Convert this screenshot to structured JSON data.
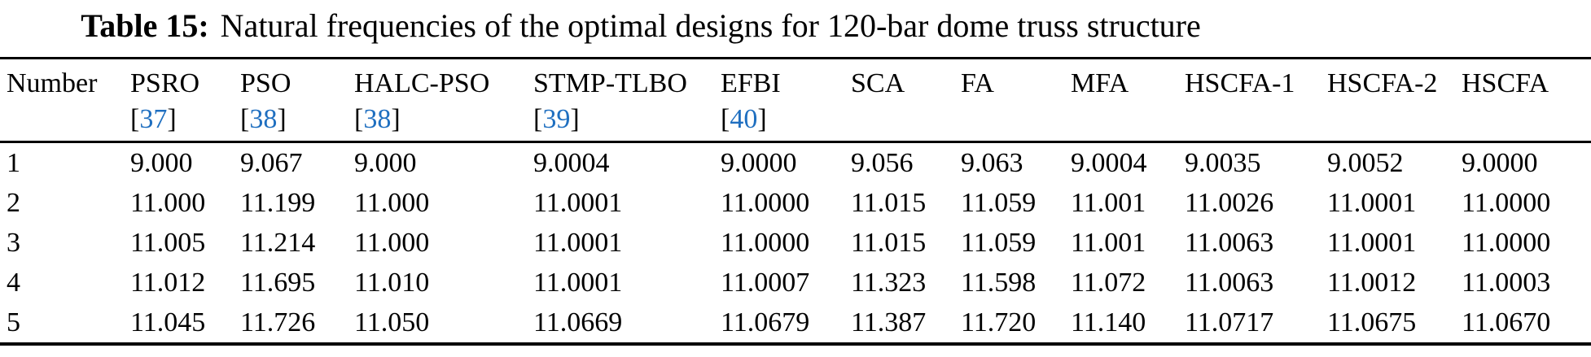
{
  "title": {
    "label": "Table 15:",
    "text": "Natural frequencies of the optimal designs for 120-bar dome truss structure"
  },
  "link_color": "#1f6fc0",
  "text_color": "#000000",
  "table": {
    "row_header": "Number",
    "columns": [
      {
        "name": "Number",
        "ref": ""
      },
      {
        "name": "PSRO",
        "ref": "37"
      },
      {
        "name": "PSO",
        "ref": "38"
      },
      {
        "name": "HALC-PSO",
        "ref": "38"
      },
      {
        "name": "STMP-TLBO",
        "ref": "39"
      },
      {
        "name": "EFBI",
        "ref": "40"
      },
      {
        "name": "SCA",
        "ref": ""
      },
      {
        "name": "FA",
        "ref": ""
      },
      {
        "name": "MFA",
        "ref": ""
      },
      {
        "name": "HSCFA-1",
        "ref": ""
      },
      {
        "name": "HSCFA-2",
        "ref": ""
      },
      {
        "name": "HSCFA",
        "ref": ""
      }
    ],
    "rows": [
      [
        "1",
        "9.000",
        "9.067",
        "9.000",
        "9.0004",
        "9.0000",
        "9.056",
        "9.063",
        "9.0004",
        "9.0035",
        "9.0052",
        "9.0000"
      ],
      [
        "2",
        "11.000",
        "11.199",
        "11.000",
        "11.0001",
        "11.0000",
        "11.015",
        "11.059",
        "11.001",
        "11.0026",
        "11.0001",
        "11.0000"
      ],
      [
        "3",
        "11.005",
        "11.214",
        "11.000",
        "11.0001",
        "11.0000",
        "11.015",
        "11.059",
        "11.001",
        "11.0063",
        "11.0001",
        "11.0000"
      ],
      [
        "4",
        "11.012",
        "11.695",
        "11.010",
        "11.0001",
        "11.0007",
        "11.323",
        "11.598",
        "11.072",
        "11.0063",
        "11.0012",
        "11.0003"
      ],
      [
        "5",
        "11.045",
        "11.726",
        "11.050",
        "11.0669",
        "11.0679",
        "11.387",
        "11.720",
        "11.140",
        "11.0717",
        "11.0675",
        "11.0670"
      ]
    ]
  }
}
